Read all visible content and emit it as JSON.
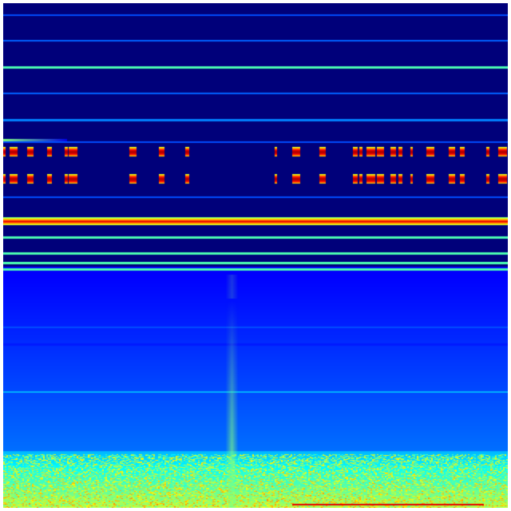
{
  "colormap": {
    "name": "jet",
    "background": "#00007a",
    "stops": [
      "#00007f",
      "#0000ff",
      "#0080ff",
      "#00ffff",
      "#80ff80",
      "#ffff00",
      "#ff8000",
      "#ff0000",
      "#800000"
    ]
  }
}
